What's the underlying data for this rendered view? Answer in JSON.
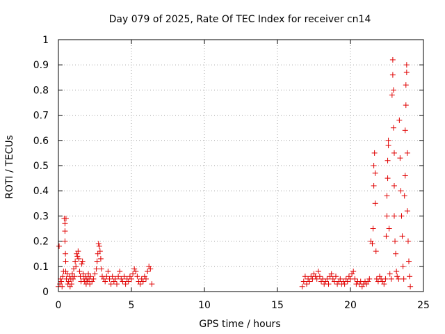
{
  "chart_data": {
    "type": "scatter",
    "title": "Day 079 of 2025, Rate Of TEC Index for receiver cn14",
    "xlabel": "GPS time / hours",
    "ylabel": "ROTI / TECUs",
    "xlim": [
      0,
      25
    ],
    "ylim": [
      0,
      1
    ],
    "xticks": [
      "0",
      "5",
      "10",
      "15",
      "20",
      "25"
    ],
    "yticks": [
      "0",
      "0.1",
      "0.2",
      "0.3",
      "0.4",
      "0.5",
      "0.6",
      "0.7",
      "0.8",
      "0.9",
      "1"
    ],
    "grid": true,
    "marker": "+",
    "color": "#e00000",
    "series": [
      {
        "values": [
          [
            0.0,
            0.02
          ],
          [
            0.05,
            0.18
          ],
          [
            0.1,
            0.03
          ],
          [
            0.15,
            0.05
          ],
          [
            0.2,
            0.04
          ],
          [
            0.25,
            0.02
          ],
          [
            0.3,
            0.06
          ],
          [
            0.35,
            0.08
          ],
          [
            0.4,
            0.29
          ],
          [
            0.45,
            0.27
          ],
          [
            0.45,
            0.24
          ],
          [
            0.45,
            0.2
          ],
          [
            0.48,
            0.15
          ],
          [
            0.5,
            0.12
          ],
          [
            0.5,
            0.08
          ],
          [
            0.52,
            0.29
          ],
          [
            0.55,
            0.05
          ],
          [
            0.6,
            0.07
          ],
          [
            0.65,
            0.03
          ],
          [
            0.7,
            0.04
          ],
          [
            0.75,
            0.06
          ],
          [
            0.8,
            0.02
          ],
          [
            0.85,
            0.05
          ],
          [
            0.9,
            0.03
          ],
          [
            0.95,
            0.07
          ],
          [
            1.0,
            0.05
          ],
          [
            1.05,
            0.09
          ],
          [
            1.1,
            0.06
          ],
          [
            1.15,
            0.12
          ],
          [
            1.2,
            0.1
          ],
          [
            1.25,
            0.15
          ],
          [
            1.3,
            0.14
          ],
          [
            1.35,
            0.16
          ],
          [
            1.4,
            0.13
          ],
          [
            1.45,
            0.08
          ],
          [
            1.5,
            0.06
          ],
          [
            1.55,
            0.04
          ],
          [
            1.6,
            0.11
          ],
          [
            1.65,
            0.12
          ],
          [
            1.7,
            0.07
          ],
          [
            1.75,
            0.05
          ],
          [
            1.8,
            0.04
          ],
          [
            1.85,
            0.06
          ],
          [
            1.9,
            0.03
          ],
          [
            1.95,
            0.05
          ],
          [
            2.0,
            0.04
          ],
          [
            2.05,
            0.07
          ],
          [
            2.1,
            0.05
          ],
          [
            2.15,
            0.03
          ],
          [
            2.2,
            0.06
          ],
          [
            2.3,
            0.04
          ],
          [
            2.4,
            0.05
          ],
          [
            2.5,
            0.07
          ],
          [
            2.6,
            0.09
          ],
          [
            2.65,
            0.12
          ],
          [
            2.7,
            0.15
          ],
          [
            2.75,
            0.19
          ],
          [
            2.8,
            0.18
          ],
          [
            2.85,
            0.16
          ],
          [
            2.9,
            0.13
          ],
          [
            2.95,
            0.09
          ],
          [
            3.0,
            0.06
          ],
          [
            3.1,
            0.05
          ],
          [
            3.2,
            0.04
          ],
          [
            3.3,
            0.06
          ],
          [
            3.4,
            0.08
          ],
          [
            3.5,
            0.05
          ],
          [
            3.6,
            0.03
          ],
          [
            3.7,
            0.06
          ],
          [
            3.8,
            0.04
          ],
          [
            3.9,
            0.05
          ],
          [
            4.0,
            0.03
          ],
          [
            4.1,
            0.06
          ],
          [
            4.2,
            0.08
          ],
          [
            4.3,
            0.05
          ],
          [
            4.4,
            0.04
          ],
          [
            4.5,
            0.06
          ],
          [
            4.6,
            0.03
          ],
          [
            4.7,
            0.05
          ],
          [
            4.8,
            0.04
          ],
          [
            4.9,
            0.06
          ],
          [
            5.0,
            0.05
          ],
          [
            5.1,
            0.07
          ],
          [
            5.2,
            0.09
          ],
          [
            5.3,
            0.08
          ],
          [
            5.4,
            0.06
          ],
          [
            5.5,
            0.04
          ],
          [
            5.6,
            0.03
          ],
          [
            5.7,
            0.05
          ],
          [
            5.8,
            0.04
          ],
          [
            5.9,
            0.06
          ],
          [
            6.0,
            0.05
          ],
          [
            6.1,
            0.08
          ],
          [
            6.2,
            0.1
          ],
          [
            6.3,
            0.09
          ],
          [
            6.4,
            0.03
          ],
          [
            16.7,
            0.02
          ],
          [
            16.8,
            0.04
          ],
          [
            16.9,
            0.06
          ],
          [
            17.0,
            0.03
          ],
          [
            17.1,
            0.05
          ],
          [
            17.2,
            0.04
          ],
          [
            17.3,
            0.06
          ],
          [
            17.4,
            0.05
          ],
          [
            17.5,
            0.07
          ],
          [
            17.6,
            0.06
          ],
          [
            17.7,
            0.05
          ],
          [
            17.8,
            0.08
          ],
          [
            17.9,
            0.06
          ],
          [
            18.0,
            0.04
          ],
          [
            18.1,
            0.05
          ],
          [
            18.2,
            0.03
          ],
          [
            18.3,
            0.04
          ],
          [
            18.4,
            0.05
          ],
          [
            18.5,
            0.03
          ],
          [
            18.6,
            0.06
          ],
          [
            18.7,
            0.07
          ],
          [
            18.8,
            0.05
          ],
          [
            18.9,
            0.04
          ],
          [
            19.0,
            0.06
          ],
          [
            19.1,
            0.03
          ],
          [
            19.2,
            0.04
          ],
          [
            19.3,
            0.05
          ],
          [
            19.4,
            0.03
          ],
          [
            19.5,
            0.04
          ],
          [
            19.6,
            0.03
          ],
          [
            19.7,
            0.05
          ],
          [
            19.8,
            0.04
          ],
          [
            19.9,
            0.06
          ],
          [
            20.0,
            0.05
          ],
          [
            20.1,
            0.07
          ],
          [
            20.2,
            0.08
          ],
          [
            20.3,
            0.05
          ],
          [
            20.4,
            0.03
          ],
          [
            20.5,
            0.04
          ],
          [
            20.6,
            0.03
          ],
          [
            20.7,
            0.04
          ],
          [
            20.8,
            0.02
          ],
          [
            20.9,
            0.03
          ],
          [
            21.0,
            0.04
          ],
          [
            21.1,
            0.03
          ],
          [
            21.2,
            0.04
          ],
          [
            21.3,
            0.05
          ],
          [
            21.4,
            0.2
          ],
          [
            21.5,
            0.19
          ],
          [
            21.55,
            0.25
          ],
          [
            21.6,
            0.42
          ],
          [
            21.6,
            0.5
          ],
          [
            21.65,
            0.55
          ],
          [
            21.7,
            0.47
          ],
          [
            21.7,
            0.35
          ],
          [
            21.75,
            0.16
          ],
          [
            21.8,
            0.05
          ],
          [
            21.9,
            0.04
          ],
          [
            22.0,
            0.06
          ],
          [
            22.1,
            0.05
          ],
          [
            22.2,
            0.04
          ],
          [
            22.3,
            0.03
          ],
          [
            22.4,
            0.05
          ],
          [
            22.45,
            0.22
          ],
          [
            22.5,
            0.3
          ],
          [
            22.5,
            0.38
          ],
          [
            22.55,
            0.45
          ],
          [
            22.55,
            0.52
          ],
          [
            22.6,
            0.6
          ],
          [
            22.6,
            0.58
          ],
          [
            22.65,
            0.25
          ],
          [
            22.7,
            0.07
          ],
          [
            22.8,
            0.05
          ],
          [
            22.85,
            0.78
          ],
          [
            22.9,
            0.92
          ],
          [
            22.9,
            0.86
          ],
          [
            22.95,
            0.8
          ],
          [
            22.95,
            0.65
          ],
          [
            23.0,
            0.55
          ],
          [
            23.0,
            0.42
          ],
          [
            23.0,
            0.3
          ],
          [
            23.05,
            0.2
          ],
          [
            23.1,
            0.15
          ],
          [
            23.15,
            0.08
          ],
          [
            23.2,
            0.06
          ],
          [
            23.3,
            0.05
          ],
          [
            23.35,
            0.68
          ],
          [
            23.4,
            0.53
          ],
          [
            23.45,
            0.4
          ],
          [
            23.5,
            0.3
          ],
          [
            23.55,
            0.22
          ],
          [
            23.6,
            0.1
          ],
          [
            23.65,
            0.05
          ],
          [
            23.7,
            0.38
          ],
          [
            23.75,
            0.46
          ],
          [
            23.75,
            0.64
          ],
          [
            23.8,
            0.74
          ],
          [
            23.8,
            0.82
          ],
          [
            23.85,
            0.9
          ],
          [
            23.85,
            0.87
          ],
          [
            23.9,
            0.55
          ],
          [
            23.9,
            0.32
          ],
          [
            23.95,
            0.2
          ],
          [
            24.0,
            0.12
          ],
          [
            24.05,
            0.06
          ],
          [
            24.1,
            0.02
          ]
        ]
      }
    ]
  }
}
